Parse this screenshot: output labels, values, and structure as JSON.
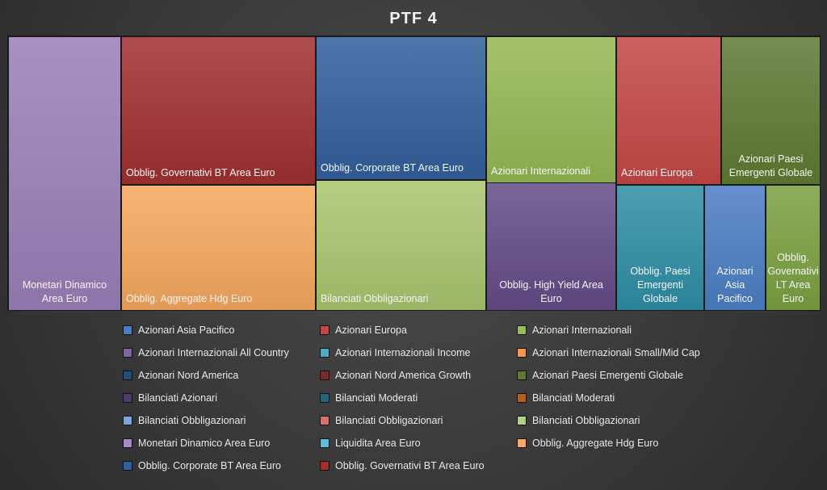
{
  "chart_data": {
    "type": "treemap",
    "title": "PTF 4",
    "unit": "percent of portfolio (estimated from area)",
    "tiles": [
      {
        "label": "Monetari Dinamico Area Euro",
        "value": 13.8,
        "color": "#9a7fb8"
      },
      {
        "label": "Obblig. Governativi BT Area Euro",
        "value": 12.9,
        "color": "#a03030"
      },
      {
        "label": "Obblig. Aggregate Hdg Euro",
        "value": 10.9,
        "color": "#f6a75e"
      },
      {
        "label": "Obblig. Corporate BT Area Euro",
        "value": 10.9,
        "color": "#325f9c"
      },
      {
        "label": "Bilanciati Obbligazionari",
        "value": 9.9,
        "color": "#a9c56f"
      },
      {
        "label": "Azionari Internazionali",
        "value": 8.5,
        "color": "#94b852"
      },
      {
        "label": "Obblig. High Yield Area Euro",
        "value": 7.4,
        "color": "#644c88"
      },
      {
        "label": "Azionari Europa",
        "value": 6.9,
        "color": "#c44746"
      },
      {
        "label": "Azionari Paesi Emergenti Globale",
        "value": 6.6,
        "color": "#5e7a32"
      },
      {
        "label": "Obblig. Paesi Emergenti Globale",
        "value": 4.9,
        "color": "#2e8ea6"
      },
      {
        "label": "Azionari Asia Pacifico",
        "value": 3.4,
        "color": "#4b7ec4"
      },
      {
        "label": "Obblig. Governativi LT Area Euro",
        "value": 3.0,
        "color": "#7aa040"
      }
    ],
    "legend": [
      {
        "label": "Azionari Asia Pacifico",
        "color": "#4a7ec4"
      },
      {
        "label": "Azionari Europa",
        "color": "#c44746"
      },
      {
        "label": "Azionari Internazionali",
        "color": "#9bbb59"
      },
      {
        "label": "Azionari Internazionali All Country",
        "color": "#8064a2"
      },
      {
        "label": "Azionari Internazionali Income",
        "color": "#4bacc6"
      },
      {
        "label": "Azionari Internazionali Small/Mid Cap",
        "color": "#f79646"
      },
      {
        "label": "Azionari Nord America",
        "color": "#1f4e79"
      },
      {
        "label": "Azionari Nord America Growth",
        "color": "#7a2a25"
      },
      {
        "label": "Azionari Paesi Emergenti Globale",
        "color": "#5e7a32"
      },
      {
        "label": "Bilanciati Azionari",
        "color": "#4d3b6e"
      },
      {
        "label": "Bilanciati Moderati",
        "color": "#21667e"
      },
      {
        "label": "Bilanciati Moderati",
        "color": "#b65f1c"
      },
      {
        "label": "Bilanciati Obbligazionari",
        "color": "#7ea6dc"
      },
      {
        "label": "Bilanciati Obbligazionari",
        "color": "#d9706e"
      },
      {
        "label": "Bilanciati Obbligazionari",
        "color": "#b3cf80"
      },
      {
        "label": "Monetari Dinamico Area Euro",
        "color": "#a58cc4"
      },
      {
        "label": "Liquidita Area Euro",
        "color": "#5bc0dc"
      },
      {
        "label": "Obblig. Aggregate Hdg Euro",
        "color": "#f9a864"
      },
      {
        "label": "Obblig. Corporate BT Area Euro",
        "color": "#2e5f9f"
      },
      {
        "label": "Obblig. Governativi BT Area Euro",
        "color": "#a52d2d"
      }
    ]
  }
}
